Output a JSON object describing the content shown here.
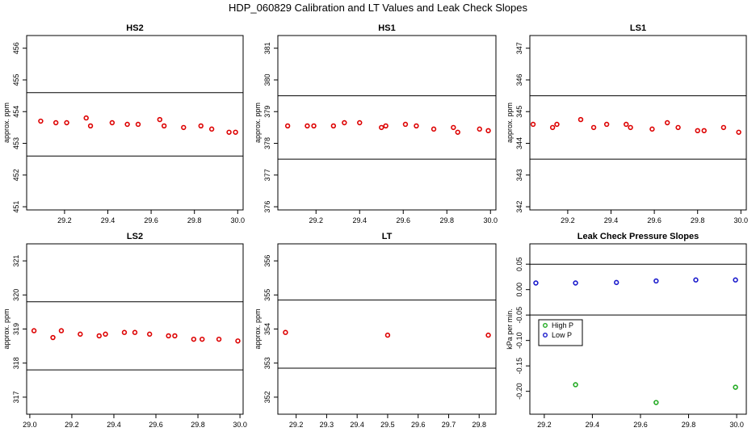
{
  "figure_title": "HDP_060829  Calibration and LT Values and Leak Check Slopes",
  "chart_data": [
    {
      "type": "scatter",
      "title": "HS2",
      "ylabel": "approx. ppm",
      "xlabel": "",
      "xlim": [
        29.025,
        30.025
      ],
      "ylim": [
        450.9,
        456.4
      ],
      "xticks": [
        29.2,
        29.4,
        29.6,
        29.8,
        30.0
      ],
      "xtick_labels": [
        "29.2",
        "29.4",
        "29.6",
        "29.8",
        "30.0"
      ],
      "yticks": [
        451,
        452,
        453,
        454,
        455,
        456
      ],
      "ytick_labels": [
        "451",
        "452",
        "453",
        "454",
        "455",
        "456"
      ],
      "hlines": [
        454.6,
        452.6
      ],
      "series": [
        {
          "name": "values",
          "color": "#dd0000",
          "marker": "circle",
          "x": [
            29.09,
            29.16,
            29.21,
            29.3,
            29.32,
            29.42,
            29.49,
            29.54,
            29.64,
            29.66,
            29.75,
            29.83,
            29.88,
            29.96,
            29.99
          ],
          "y": [
            453.7,
            453.65,
            453.65,
            453.8,
            453.55,
            453.65,
            453.6,
            453.6,
            453.75,
            453.55,
            453.5,
            453.55,
            453.45,
            453.35,
            453.35
          ]
        }
      ]
    },
    {
      "type": "scatter",
      "title": "HS1",
      "ylabel": "approx. ppm",
      "xlabel": "",
      "xlim": [
        29.025,
        30.025
      ],
      "ylim": [
        375.9,
        381.4
      ],
      "xticks": [
        29.2,
        29.4,
        29.6,
        29.8,
        30.0
      ],
      "xtick_labels": [
        "29.2",
        "29.4",
        "29.6",
        "29.8",
        "30.0"
      ],
      "yticks": [
        376,
        377,
        378,
        379,
        380,
        381
      ],
      "ytick_labels": [
        "376",
        "377",
        "378",
        "379",
        "380",
        "381"
      ],
      "hlines": [
        379.5,
        377.5
      ],
      "series": [
        {
          "name": "values",
          "color": "#dd0000",
          "marker": "circle",
          "x": [
            29.07,
            29.16,
            29.19,
            29.28,
            29.33,
            29.4,
            29.5,
            29.52,
            29.61,
            29.66,
            29.74,
            29.83,
            29.85,
            29.95,
            29.99
          ],
          "y": [
            378.55,
            378.55,
            378.55,
            378.55,
            378.65,
            378.65,
            378.5,
            378.55,
            378.6,
            378.55,
            378.45,
            378.5,
            378.35,
            378.45,
            378.4
          ]
        }
      ]
    },
    {
      "type": "scatter",
      "title": "LS1",
      "ylabel": "approx. ppm",
      "xlabel": "",
      "xlim": [
        29.025,
        30.025
      ],
      "ylim": [
        341.9,
        347.4
      ],
      "xticks": [
        29.2,
        29.4,
        29.6,
        29.8,
        30.0
      ],
      "xtick_labels": [
        "29.2",
        "29.4",
        "29.6",
        "29.8",
        "30.0"
      ],
      "yticks": [
        342,
        343,
        344,
        345,
        346,
        347
      ],
      "ytick_labels": [
        "342",
        "343",
        "344",
        "345",
        "346",
        "347"
      ],
      "hlines": [
        345.5,
        343.5
      ],
      "series": [
        {
          "name": "values",
          "color": "#dd0000",
          "marker": "circle",
          "x": [
            29.04,
            29.13,
            29.15,
            29.26,
            29.32,
            29.38,
            29.47,
            29.49,
            29.59,
            29.66,
            29.71,
            29.8,
            29.83,
            29.92,
            29.99
          ],
          "y": [
            344.6,
            344.5,
            344.6,
            344.75,
            344.5,
            344.6,
            344.6,
            344.5,
            344.45,
            344.65,
            344.5,
            344.4,
            344.4,
            344.5,
            344.35
          ]
        }
      ]
    },
    {
      "type": "scatter",
      "title": "LS2",
      "ylabel": "approx. ppm",
      "xlabel": "",
      "xlim": [
        28.985,
        30.015
      ],
      "ylim": [
        316.5,
        321.5
      ],
      "xticks": [
        29.0,
        29.2,
        29.4,
        29.6,
        29.8,
        30.0
      ],
      "xtick_labels": [
        "29.0",
        "29.2",
        "29.4",
        "29.6",
        "29.8",
        "30.0"
      ],
      "yticks": [
        317,
        318,
        319,
        320,
        321
      ],
      "ytick_labels": [
        "317",
        "318",
        "319",
        "320",
        "321"
      ],
      "hlines": [
        319.8,
        317.8
      ],
      "series": [
        {
          "name": "values",
          "color": "#dd0000",
          "marker": "circle",
          "x": [
            29.02,
            29.11,
            29.15,
            29.24,
            29.33,
            29.36,
            29.45,
            29.5,
            29.57,
            29.66,
            29.69,
            29.78,
            29.82,
            29.9,
            29.99
          ],
          "y": [
            318.95,
            318.75,
            318.95,
            318.85,
            318.8,
            318.85,
            318.9,
            318.9,
            318.85,
            318.8,
            318.8,
            318.7,
            318.7,
            318.7,
            318.65
          ]
        }
      ]
    },
    {
      "type": "scatter",
      "title": "LT",
      "ylabel": "approx. ppm",
      "xlabel": "",
      "xlim": [
        29.14,
        29.855
      ],
      "ylim": [
        351.5,
        356.5
      ],
      "xticks": [
        29.2,
        29.3,
        29.4,
        29.5,
        29.6,
        29.7,
        29.8
      ],
      "xtick_labels": [
        "29.2",
        "29.3",
        "29.4",
        "29.5",
        "29.6",
        "29.7",
        "29.8"
      ],
      "yticks": [
        352,
        353,
        354,
        355,
        356
      ],
      "ytick_labels": [
        "352",
        "353",
        "354",
        "355",
        "356"
      ],
      "hlines": [
        354.85,
        352.85
      ],
      "series": [
        {
          "name": "values",
          "color": "#dd0000",
          "marker": "circle",
          "x": [
            29.165,
            29.5,
            29.83
          ],
          "y": [
            353.9,
            353.82,
            353.82
          ]
        }
      ]
    },
    {
      "type": "scatter",
      "title": "Leak Check Pressure Slopes",
      "ylabel": "kPa per min.",
      "xlabel": "",
      "xlim": [
        29.14,
        30.04
      ],
      "ylim": [
        -0.245,
        0.09
      ],
      "xticks": [
        29.2,
        29.4,
        29.6,
        29.8,
        30.0
      ],
      "xtick_labels": [
        "29.2",
        "29.4",
        "29.6",
        "29.8",
        "30.0"
      ],
      "yticks": [
        0.05,
        0.0,
        -0.05,
        -0.1,
        -0.15,
        -0.2
      ],
      "ytick_labels": [
        "0.05",
        "0.00",
        "-0.05",
        "-0.10",
        "-0.15",
        "-0.20"
      ],
      "hlines": [
        0.05,
        -0.05
      ],
      "legend": {
        "placement": "middle-left",
        "entries": [
          "High P",
          "Low P"
        ]
      },
      "series": [
        {
          "name": "High P",
          "color": "#22aa22",
          "marker": "circle",
          "x": [
            29.33,
            29.665,
            29.995
          ],
          "y": [
            -0.187,
            -0.222,
            -0.192
          ]
        },
        {
          "name": "Low P",
          "color": "#1a1acc",
          "marker": "circle",
          "x": [
            29.165,
            29.33,
            29.5,
            29.665,
            29.83,
            29.995
          ],
          "y": [
            0.013,
            0.013,
            0.014,
            0.017,
            0.019,
            0.019
          ]
        }
      ]
    }
  ]
}
